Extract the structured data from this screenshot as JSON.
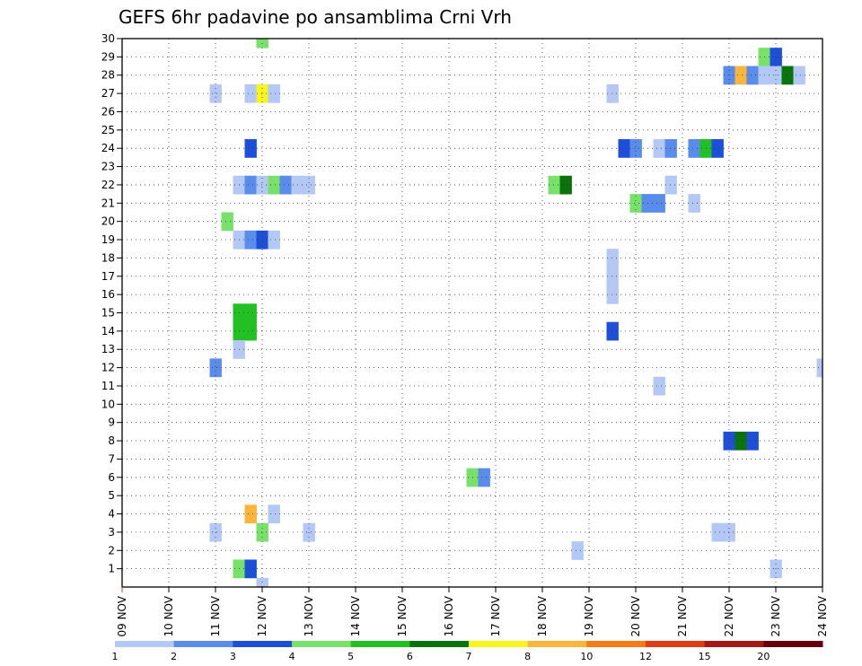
{
  "chart_data": {
    "type": "heatmap",
    "title": "GEFS 6hr padavine po ansamblima Crni Vrh",
    "xlabel": "",
    "ylabel": "",
    "x_ticks": [
      "09 NOV",
      "10 NOV",
      "11 NOV",
      "12 NOV",
      "13 NOV",
      "14 NOV",
      "15 NOV",
      "16 NOV",
      "17 NOV",
      "18 NOV",
      "19 NOV",
      "20 NOV",
      "21 NOV",
      "22 NOV",
      "23 NOV",
      "24 NOV"
    ],
    "y_ticks": [
      "1",
      "2",
      "3",
      "4",
      "5",
      "6",
      "7",
      "8",
      "9",
      "10",
      "11",
      "12",
      "13",
      "14",
      "15",
      "16",
      "17",
      "18",
      "19",
      "20",
      "21",
      "22",
      "23",
      "24",
      "25",
      "26",
      "27",
      "28",
      "29",
      "30"
    ],
    "xlim_days": [
      9,
      24
    ],
    "ylim": [
      0,
      30
    ],
    "step_days": 0.25,
    "grid": true,
    "colorbar": {
      "labels": [
        "1",
        "2",
        "3",
        "4",
        "5",
        "6",
        "7",
        "8",
        "10",
        "12",
        "15",
        "20"
      ],
      "colors": [
        "#b4c8f5",
        "#5a8cec",
        "#1e4fd9",
        "#78e16a",
        "#22c022",
        "#0b730b",
        "#f8f41e",
        "#fbb53a",
        "#f47a14",
        "#df3c14",
        "#a41816",
        "#64000e"
      ]
    },
    "cells": [
      [
        12.0,
        30,
        4
      ],
      [
        22.75,
        29,
        4
      ],
      [
        23.0,
        29,
        3
      ],
      [
        22.0,
        28,
        2
      ],
      [
        22.25,
        28,
        8
      ],
      [
        22.5,
        28,
        2
      ],
      [
        22.75,
        28,
        1
      ],
      [
        23.0,
        28,
        1
      ],
      [
        23.25,
        28,
        6
      ],
      [
        23.5,
        28,
        1
      ],
      [
        11.0,
        27,
        1
      ],
      [
        11.75,
        27,
        1
      ],
      [
        12.0,
        27,
        7
      ],
      [
        12.25,
        27,
        1
      ],
      [
        19.5,
        27,
        1
      ],
      [
        11.75,
        24,
        3
      ],
      [
        19.75,
        24,
        3
      ],
      [
        20.0,
        24,
        2
      ],
      [
        20.5,
        24,
        1
      ],
      [
        20.75,
        24,
        2
      ],
      [
        21.25,
        24,
        2
      ],
      [
        21.5,
        24,
        5
      ],
      [
        21.75,
        24,
        3
      ],
      [
        11.5,
        22,
        1
      ],
      [
        11.75,
        22,
        2
      ],
      [
        12.0,
        22,
        1
      ],
      [
        12.25,
        22,
        4
      ],
      [
        12.5,
        22,
        2
      ],
      [
        12.75,
        22,
        1
      ],
      [
        13.0,
        22,
        1
      ],
      [
        18.25,
        22,
        4
      ],
      [
        18.5,
        22,
        6
      ],
      [
        20.75,
        22,
        1
      ],
      [
        20.0,
        21,
        4
      ],
      [
        20.25,
        21,
        2
      ],
      [
        20.5,
        21,
        2
      ],
      [
        21.25,
        21,
        1
      ],
      [
        11.25,
        20,
        4
      ],
      [
        11.5,
        19,
        1
      ],
      [
        11.75,
        19,
        2
      ],
      [
        12.0,
        19,
        3
      ],
      [
        12.25,
        19,
        1
      ],
      [
        19.5,
        18,
        1
      ],
      [
        19.5,
        17,
        1
      ],
      [
        19.5,
        16,
        1
      ],
      [
        11.5,
        15,
        5
      ],
      [
        11.75,
        15,
        5
      ],
      [
        11.5,
        14,
        5
      ],
      [
        11.75,
        14,
        5
      ],
      [
        19.5,
        14,
        3
      ],
      [
        11.5,
        13,
        1
      ],
      [
        11.0,
        12,
        2
      ],
      [
        24.0,
        12,
        1
      ],
      [
        20.5,
        11,
        1
      ],
      [
        22.0,
        8,
        3
      ],
      [
        22.25,
        8,
        6
      ],
      [
        22.5,
        8,
        3
      ],
      [
        16.5,
        6,
        4
      ],
      [
        16.75,
        6,
        2
      ],
      [
        11.75,
        4,
        8
      ],
      [
        12.25,
        4,
        1
      ],
      [
        11.0,
        3,
        1
      ],
      [
        12.0,
        3,
        4
      ],
      [
        13.0,
        3,
        1
      ],
      [
        21.75,
        3,
        1
      ],
      [
        22.0,
        3,
        1
      ],
      [
        18.75,
        2,
        1
      ],
      [
        11.5,
        1,
        4
      ],
      [
        11.75,
        1,
        3
      ],
      [
        23.0,
        1,
        1
      ],
      [
        12.0,
        0,
        1
      ]
    ]
  }
}
